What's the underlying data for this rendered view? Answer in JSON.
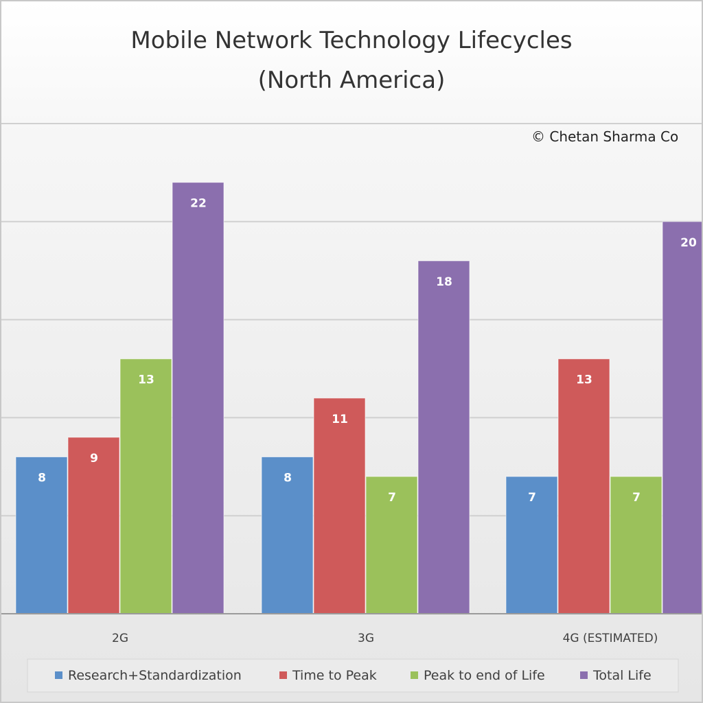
{
  "chart_data": {
    "type": "bar",
    "title": "Mobile Network Technology Lifecycles",
    "subtitle": "(North America)",
    "watermark": "© Chetan Sharma Co",
    "categories": [
      "2G",
      "3G",
      "4G (ESTIMATED)"
    ],
    "series": [
      {
        "name": "Research+Standardization",
        "color": "#5b8fc9",
        "values": [
          8,
          8,
          7
        ]
      },
      {
        "name": "Time to Peak",
        "color": "#cf5a5a",
        "values": [
          9,
          11,
          13
        ]
      },
      {
        "name": "Peak to end of Life",
        "color": "#9bc15b",
        "values": [
          13,
          7,
          7
        ]
      },
      {
        "name": "Total Life",
        "color": "#8b6fae",
        "values": [
          22,
          18,
          20
        ]
      }
    ],
    "ylim": [
      0,
      25
    ],
    "grid": true,
    "legend": "bottom"
  }
}
